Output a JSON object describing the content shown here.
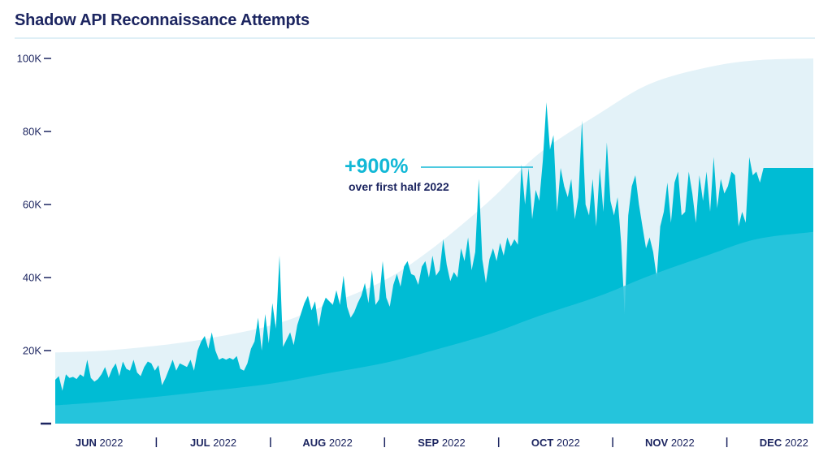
{
  "title": "Shadow API Reconnaissance Attempts",
  "colors": {
    "title": "#1c2560",
    "upper_band": "#e3f2f8",
    "trend_area": "#2cc5dd",
    "daily_series": "#00bcd4",
    "annotation": "#12b8d6",
    "axis_text": "#1c2560"
  },
  "annotation": {
    "headline": "+900%",
    "subline": "over first half 2022"
  },
  "chart_data": {
    "type": "area",
    "title": "Shadow API Reconnaissance Attempts",
    "xlabel": "",
    "ylabel": "",
    "ylim": [
      0,
      100000
    ],
    "y_ticks": [
      {
        "value": 0,
        "label": ""
      },
      {
        "value": 20000,
        "label": "20K"
      },
      {
        "value": 40000,
        "label": "40K"
      },
      {
        "value": 60000,
        "label": "60K"
      },
      {
        "value": 80000,
        "label": "80K"
      },
      {
        "value": 100000,
        "label": "100K"
      }
    ],
    "x_range": [
      "2022-06-01",
      "2022-12-31"
    ],
    "x_categories": [
      {
        "month": "JUN",
        "year": "2022"
      },
      {
        "month": "JUL",
        "year": "2022"
      },
      {
        "month": "AUG",
        "year": "2022"
      },
      {
        "month": "SEP",
        "year": "2022"
      },
      {
        "month": "OCT",
        "year": "2022"
      },
      {
        "month": "NOV",
        "year": "2022"
      },
      {
        "month": "DEC",
        "year": "2022"
      }
    ],
    "grid": false,
    "legend": "none",
    "series": [
      {
        "points": [
          [
            "2022-06-01",
            19500
          ],
          [
            "2022-06-15",
            20000
          ],
          [
            "2022-07-01",
            21500
          ],
          [
            "2022-07-15",
            23500
          ],
          [
            "2022-08-01",
            27000
          ],
          [
            "2022-08-15",
            32000
          ],
          [
            "2022-09-01",
            39000
          ],
          [
            "2022-09-15",
            48000
          ],
          [
            "2022-10-01",
            61000
          ],
          [
            "2022-10-15",
            74000
          ],
          [
            "2022-11-01",
            85000
          ],
          [
            "2022-11-15",
            93000
          ],
          [
            "2022-12-01",
            97500
          ],
          [
            "2022-12-15",
            99500
          ],
          [
            "2022-12-31",
            100000
          ]
        ]
      },
      {
        "points": [
          [
            "2022-06-01",
            5000
          ],
          [
            "2022-06-15",
            6000
          ],
          [
            "2022-07-01",
            7500
          ],
          [
            "2022-07-15",
            9000
          ],
          [
            "2022-08-01",
            11000
          ],
          [
            "2022-08-15",
            13500
          ],
          [
            "2022-09-01",
            16500
          ],
          [
            "2022-09-15",
            20000
          ],
          [
            "2022-10-01",
            24500
          ],
          [
            "2022-10-15",
            29500
          ],
          [
            "2022-11-01",
            35000
          ],
          [
            "2022-11-15",
            40500
          ],
          [
            "2022-12-01",
            46000
          ],
          [
            "2022-12-15",
            50500
          ],
          [
            "2022-12-31",
            52500
          ]
        ]
      },
      {
        "points": [
          [
            "2022-06-01",
            12000
          ],
          [
            "2022-06-02",
            13000
          ],
          [
            "2022-06-03",
            9000
          ],
          [
            "2022-06-04",
            13500
          ],
          [
            "2022-06-05",
            12500
          ],
          [
            "2022-06-06",
            12800
          ],
          [
            "2022-06-07",
            12200
          ],
          [
            "2022-06-08",
            13500
          ],
          [
            "2022-06-09",
            12800
          ],
          [
            "2022-06-10",
            17500
          ],
          [
            "2022-06-11",
            12500
          ],
          [
            "2022-06-12",
            11500
          ],
          [
            "2022-06-13",
            12200
          ],
          [
            "2022-06-14",
            13500
          ],
          [
            "2022-06-15",
            15500
          ],
          [
            "2022-06-16",
            12500
          ],
          [
            "2022-06-17",
            15000
          ],
          [
            "2022-06-18",
            16500
          ],
          [
            "2022-06-19",
            13000
          ],
          [
            "2022-06-20",
            17000
          ],
          [
            "2022-06-21",
            15000
          ],
          [
            "2022-06-22",
            14500
          ],
          [
            "2022-06-23",
            17500
          ],
          [
            "2022-06-24",
            14000
          ],
          [
            "2022-06-25",
            13000
          ],
          [
            "2022-06-26",
            15500
          ],
          [
            "2022-06-27",
            17000
          ],
          [
            "2022-06-28",
            16500
          ],
          [
            "2022-06-29",
            14500
          ],
          [
            "2022-06-30",
            16000
          ],
          [
            "2022-07-01",
            10500
          ],
          [
            "2022-07-02",
            12500
          ],
          [
            "2022-07-03",
            15000
          ],
          [
            "2022-07-04",
            17500
          ],
          [
            "2022-07-05",
            14500
          ],
          [
            "2022-07-06",
            16500
          ],
          [
            "2022-07-07",
            16000
          ],
          [
            "2022-07-08",
            15500
          ],
          [
            "2022-07-09",
            17500
          ],
          [
            "2022-07-10",
            14500
          ],
          [
            "2022-07-11",
            20000
          ],
          [
            "2022-07-12",
            22500
          ],
          [
            "2022-07-13",
            24000
          ],
          [
            "2022-07-14",
            20500
          ],
          [
            "2022-07-15",
            25000
          ],
          [
            "2022-07-16",
            20000
          ],
          [
            "2022-07-17",
            17500
          ],
          [
            "2022-07-18",
            18000
          ],
          [
            "2022-07-19",
            17500
          ],
          [
            "2022-07-20",
            18000
          ],
          [
            "2022-07-21",
            17500
          ],
          [
            "2022-07-22",
            18500
          ],
          [
            "2022-07-23",
            15000
          ],
          [
            "2022-07-24",
            14500
          ],
          [
            "2022-07-25",
            16500
          ],
          [
            "2022-07-26",
            20500
          ],
          [
            "2022-07-27",
            22500
          ],
          [
            "2022-07-28",
            29000
          ],
          [
            "2022-07-29",
            20000
          ],
          [
            "2022-07-30",
            30000
          ],
          [
            "2022-07-31",
            22000
          ],
          [
            "2022-08-01",
            33000
          ],
          [
            "2022-08-02",
            26000
          ],
          [
            "2022-08-03",
            46000
          ],
          [
            "2022-08-04",
            21000
          ],
          [
            "2022-08-05",
            23000
          ],
          [
            "2022-08-06",
            25000
          ],
          [
            "2022-08-07",
            21500
          ],
          [
            "2022-08-08",
            27000
          ],
          [
            "2022-08-09",
            30000
          ],
          [
            "2022-08-10",
            33000
          ],
          [
            "2022-08-11",
            35000
          ],
          [
            "2022-08-12",
            31000
          ],
          [
            "2022-08-13",
            33500
          ],
          [
            "2022-08-14",
            26500
          ],
          [
            "2022-08-15",
            32000
          ],
          [
            "2022-08-16",
            34500
          ],
          [
            "2022-08-17",
            33500
          ],
          [
            "2022-08-18",
            32500
          ],
          [
            "2022-08-19",
            36500
          ],
          [
            "2022-08-20",
            32500
          ],
          [
            "2022-08-21",
            40500
          ],
          [
            "2022-08-22",
            32000
          ],
          [
            "2022-08-23",
            29000
          ],
          [
            "2022-08-24",
            30500
          ],
          [
            "2022-08-25",
            33000
          ],
          [
            "2022-08-26",
            35000
          ],
          [
            "2022-08-27",
            38500
          ],
          [
            "2022-08-28",
            33000
          ],
          [
            "2022-08-29",
            42000
          ],
          [
            "2022-08-30",
            32500
          ],
          [
            "2022-08-31",
            34000
          ],
          [
            "2022-09-01",
            44500
          ],
          [
            "2022-09-02",
            34500
          ],
          [
            "2022-09-03",
            32000
          ],
          [
            "2022-09-04",
            38000
          ],
          [
            "2022-09-05",
            41000
          ],
          [
            "2022-09-06",
            37500
          ],
          [
            "2022-09-07",
            43000
          ],
          [
            "2022-09-08",
            44500
          ],
          [
            "2022-09-09",
            41000
          ],
          [
            "2022-09-10",
            40500
          ],
          [
            "2022-09-11",
            38000
          ],
          [
            "2022-09-12",
            43000
          ],
          [
            "2022-09-13",
            44500
          ],
          [
            "2022-09-14",
            40000
          ],
          [
            "2022-09-15",
            46000
          ],
          [
            "2022-09-16",
            40500
          ],
          [
            "2022-09-17",
            42000
          ],
          [
            "2022-09-18",
            50500
          ],
          [
            "2022-09-19",
            43500
          ],
          [
            "2022-09-20",
            39000
          ],
          [
            "2022-09-21",
            41500
          ],
          [
            "2022-09-22",
            40000
          ],
          [
            "2022-09-23",
            48000
          ],
          [
            "2022-09-24",
            44500
          ],
          [
            "2022-09-25",
            51000
          ],
          [
            "2022-09-26",
            42000
          ],
          [
            "2022-09-27",
            47000
          ],
          [
            "2022-09-28",
            67000
          ],
          [
            "2022-09-29",
            45000
          ],
          [
            "2022-09-30",
            38500
          ],
          [
            "2022-10-01",
            45000
          ],
          [
            "2022-10-02",
            48000
          ],
          [
            "2022-10-03",
            44500
          ],
          [
            "2022-10-04",
            49500
          ],
          [
            "2022-10-05",
            46000
          ],
          [
            "2022-10-06",
            51000
          ],
          [
            "2022-10-07",
            48500
          ],
          [
            "2022-10-08",
            50500
          ],
          [
            "2022-10-09",
            49000
          ],
          [
            "2022-10-10",
            71000
          ],
          [
            "2022-10-11",
            60000
          ],
          [
            "2022-10-12",
            70000
          ],
          [
            "2022-10-13",
            56000
          ],
          [
            "2022-10-14",
            64000
          ],
          [
            "2022-10-15",
            61000
          ],
          [
            "2022-10-16",
            72000
          ],
          [
            "2022-10-17",
            88000
          ],
          [
            "2022-10-18",
            75000
          ],
          [
            "2022-10-19",
            79000
          ],
          [
            "2022-10-20",
            58000
          ],
          [
            "2022-10-21",
            70000
          ],
          [
            "2022-10-22",
            65000
          ],
          [
            "2022-10-23",
            62000
          ],
          [
            "2022-10-24",
            67000
          ],
          [
            "2022-10-25",
            56000
          ],
          [
            "2022-10-26",
            62000
          ],
          [
            "2022-10-27",
            83000
          ],
          [
            "2022-10-28",
            60000
          ],
          [
            "2022-10-29",
            57000
          ],
          [
            "2022-10-30",
            67000
          ],
          [
            "2022-10-31",
            54000
          ],
          [
            "2022-11-01",
            70000
          ],
          [
            "2022-11-02",
            58000
          ],
          [
            "2022-11-03",
            77000
          ],
          [
            "2022-11-04",
            61000
          ],
          [
            "2022-11-05",
            57000
          ],
          [
            "2022-11-06",
            62000
          ],
          [
            "2022-11-07",
            49500
          ],
          [
            "2022-11-08",
            30000
          ],
          [
            "2022-11-09",
            57000
          ],
          [
            "2022-11-10",
            65000
          ],
          [
            "2022-11-11",
            68000
          ],
          [
            "2022-11-12",
            60000
          ],
          [
            "2022-11-13",
            54000
          ],
          [
            "2022-11-14",
            48000
          ],
          [
            "2022-11-15",
            51000
          ],
          [
            "2022-11-16",
            47000
          ],
          [
            "2022-11-17",
            40000
          ],
          [
            "2022-11-18",
            54000
          ],
          [
            "2022-11-19",
            58000
          ],
          [
            "2022-11-20",
            66000
          ],
          [
            "2022-11-21",
            55000
          ],
          [
            "2022-11-22",
            66000
          ],
          [
            "2022-11-23",
            69000
          ],
          [
            "2022-11-24",
            57000
          ],
          [
            "2022-11-25",
            58000
          ],
          [
            "2022-11-26",
            69000
          ],
          [
            "2022-11-27",
            63000
          ],
          [
            "2022-11-28",
            55000
          ],
          [
            "2022-11-29",
            68000
          ],
          [
            "2022-11-30",
            61000
          ],
          [
            "2022-12-01",
            69000
          ],
          [
            "2022-12-02",
            58000
          ],
          [
            "2022-12-03",
            73000
          ],
          [
            "2022-12-04",
            59000
          ],
          [
            "2022-12-05",
            67000
          ],
          [
            "2022-12-06",
            63000
          ],
          [
            "2022-12-07",
            65000
          ],
          [
            "2022-12-08",
            69000
          ],
          [
            "2022-12-09",
            68000
          ],
          [
            "2022-12-10",
            54000
          ],
          [
            "2022-12-11",
            58000
          ],
          [
            "2022-12-12",
            55000
          ],
          [
            "2022-12-13",
            73000
          ],
          [
            "2022-12-14",
            68000
          ],
          [
            "2022-12-15",
            69000
          ],
          [
            "2022-12-16",
            66000
          ],
          [
            "2022-12-17",
            70000
          ]
        ]
      }
    ]
  }
}
